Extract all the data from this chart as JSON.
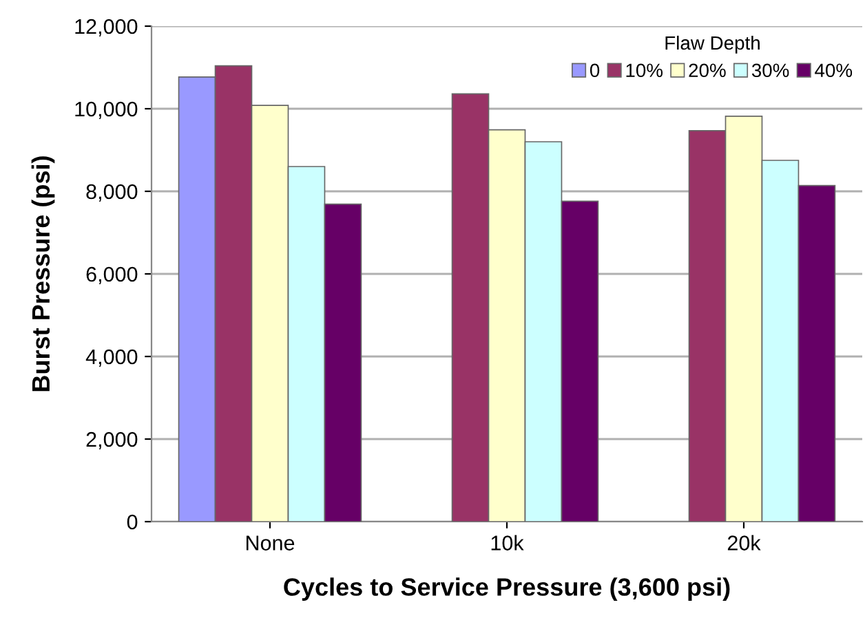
{
  "chart_data": {
    "type": "bar",
    "xlabel": "Cycles to Service Pressure (3,600 psi)",
    "ylabel": "Burst Pressure (psi)",
    "legend_title": "Flaw Depth",
    "categories": [
      "None",
      "10k",
      "20k"
    ],
    "series": [
      {
        "name": "0",
        "color": "#9999ff",
        "values": [
          10770,
          null,
          null
        ]
      },
      {
        "name": "10%",
        "color": "#993366",
        "values": [
          11040,
          10360,
          9470
        ]
      },
      {
        "name": "20%",
        "color": "#ffffcc",
        "values": [
          10080,
          9490,
          9820
        ]
      },
      {
        "name": "30%",
        "color": "#ccffff",
        "values": [
          8600,
          9200,
          8750
        ]
      },
      {
        "name": "40%",
        "color": "#660066",
        "values": [
          7690,
          7760,
          8140
        ]
      }
    ],
    "ylim": [
      0,
      12000
    ],
    "yticks": [
      {
        "value": 0,
        "label": "0"
      },
      {
        "value": 2000,
        "label": "2,000"
      },
      {
        "value": 4000,
        "label": "4,000"
      },
      {
        "value": 6000,
        "label": "6,000"
      },
      {
        "value": 8000,
        "label": "8,000"
      },
      {
        "value": 10000,
        "label": "10,000"
      },
      {
        "value": 12000,
        "label": "12,000"
      }
    ],
    "grid": "y",
    "legend": "top right"
  }
}
